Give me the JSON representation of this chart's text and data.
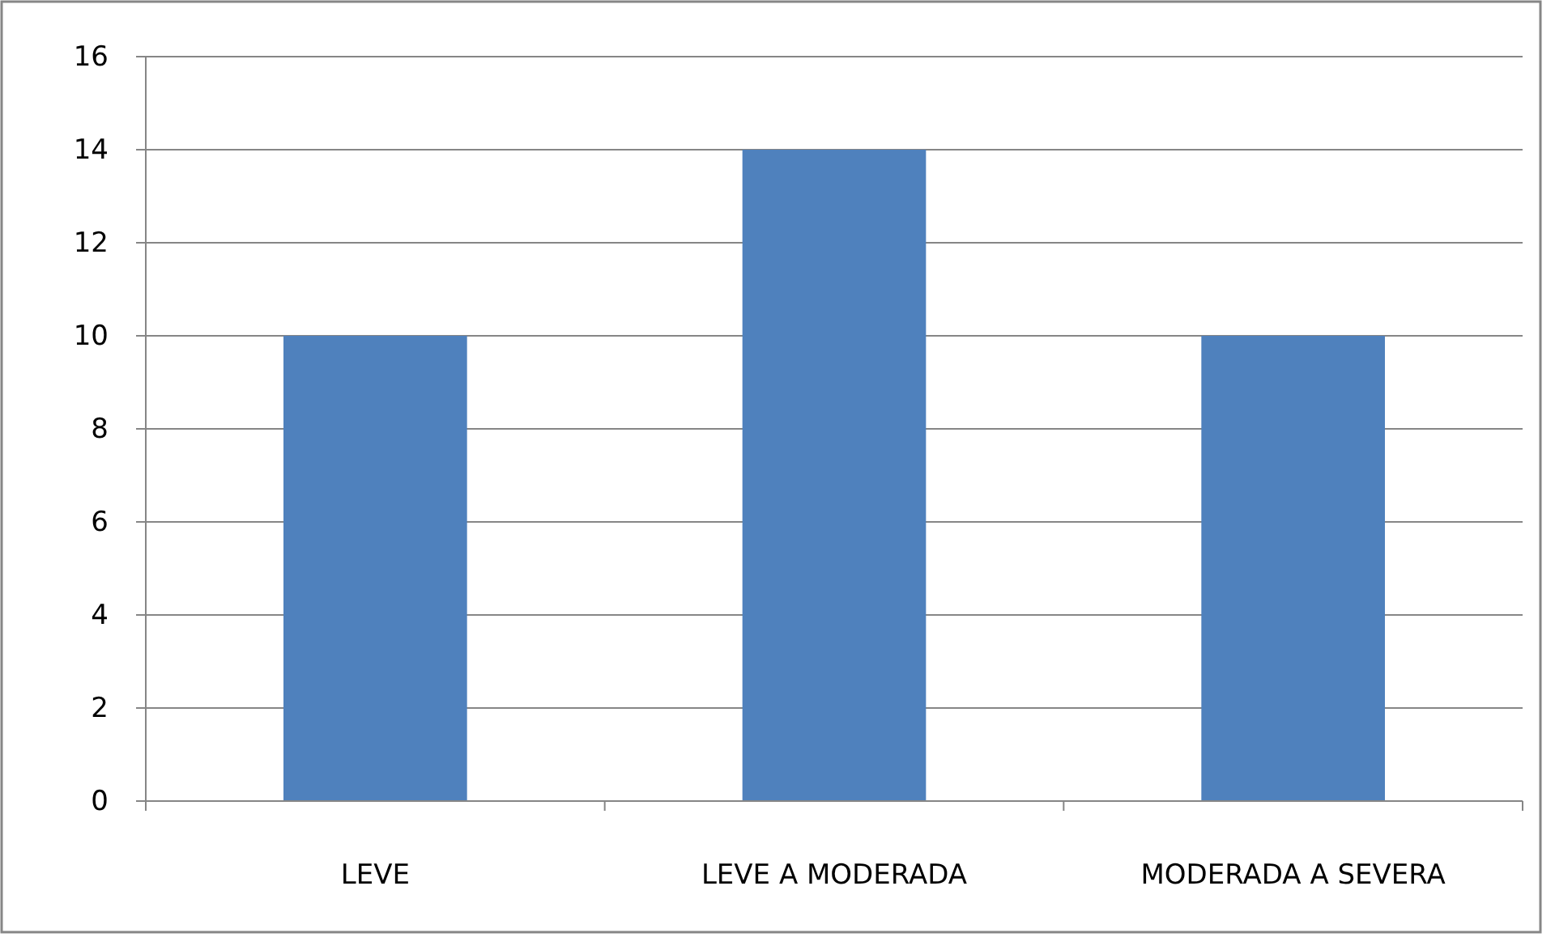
{
  "chart_data": {
    "type": "bar",
    "categories": [
      "LEVE",
      "LEVE A MODERADA",
      "MODERADA A SEVERA"
    ],
    "values": [
      10,
      14,
      10
    ],
    "color": "#4f81bd",
    "ylim": [
      0,
      16
    ],
    "yticks": [
      0,
      2,
      4,
      6,
      8,
      10,
      12,
      14,
      16
    ],
    "grid": "y"
  }
}
